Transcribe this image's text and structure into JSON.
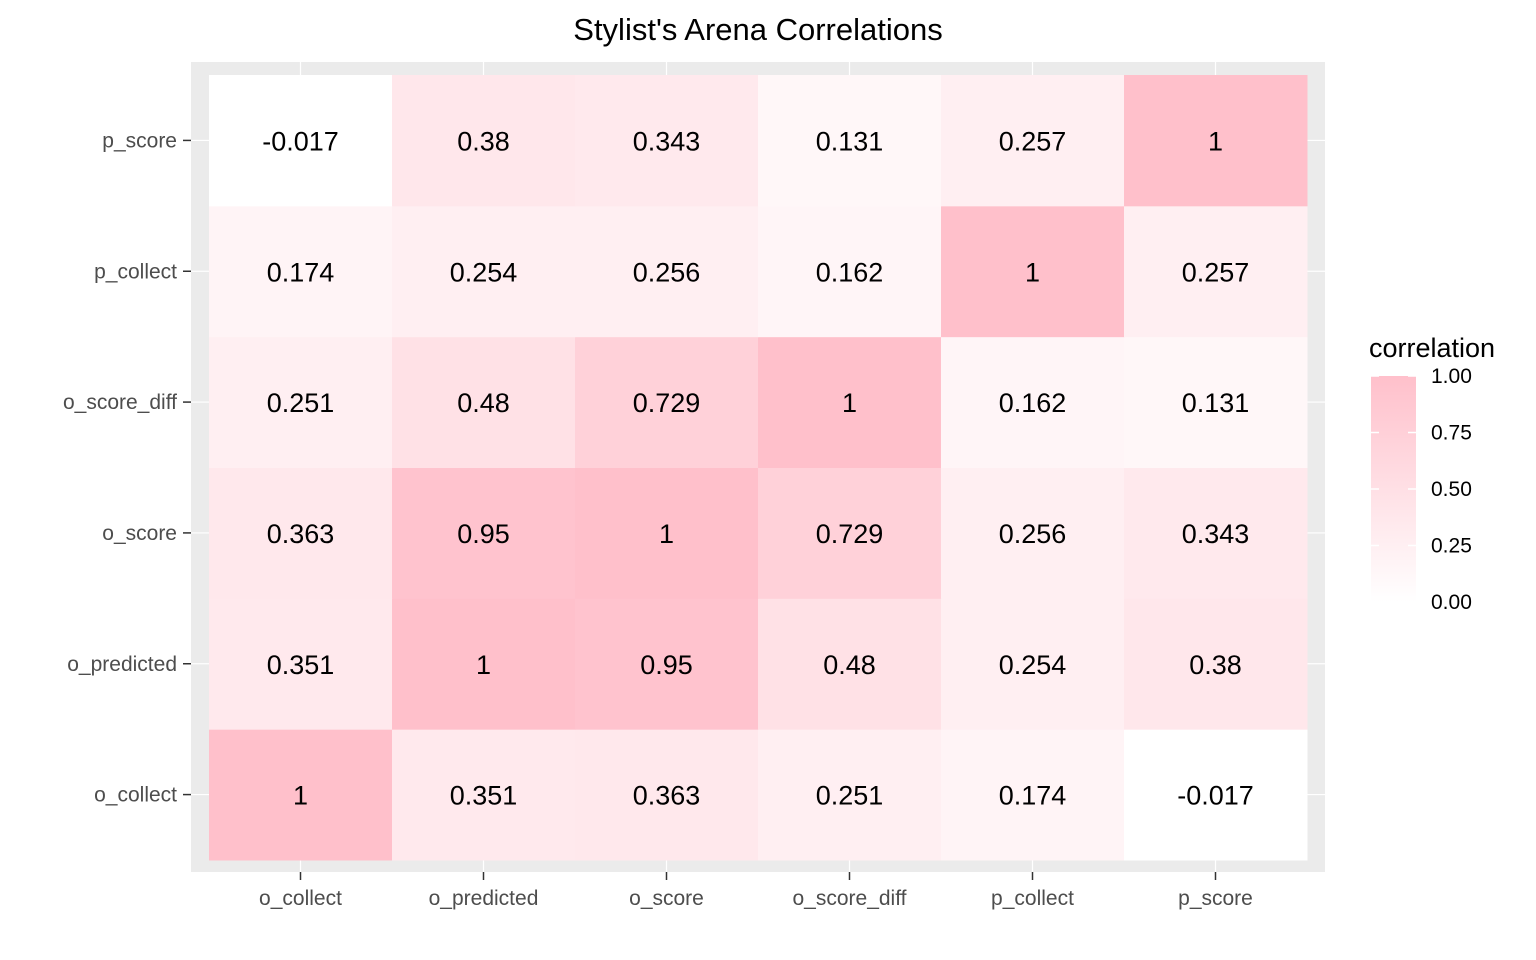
{
  "chart_data": {
    "type": "heatmap",
    "title": "Stylist's Arena Correlations",
    "xlabel": "",
    "ylabel": "",
    "x_categories": [
      "o_collect",
      "o_predicted",
      "o_score",
      "o_score_diff",
      "p_collect",
      "p_score"
    ],
    "y_categories": [
      "o_collect",
      "o_predicted",
      "o_score",
      "o_score_diff",
      "p_collect",
      "p_score"
    ],
    "matrix": [
      [
        1,
        0.351,
        0.363,
        0.251,
        0.174,
        -0.017
      ],
      [
        0.351,
        1,
        0.95,
        0.48,
        0.254,
        0.38
      ],
      [
        0.363,
        0.95,
        1,
        0.729,
        0.256,
        0.343
      ],
      [
        0.251,
        0.48,
        0.729,
        1,
        0.162,
        0.131
      ],
      [
        0.174,
        0.254,
        0.256,
        0.162,
        1,
        0.257
      ],
      [
        -0.017,
        0.38,
        0.343,
        0.131,
        0.257,
        1
      ]
    ],
    "color_scale": {
      "low": "#ffffff",
      "high": "#ffc0cb",
      "range": [
        0,
        1
      ]
    },
    "legend": {
      "title": "correlation",
      "ticks": [
        "0.00",
        "0.25",
        "0.50",
        "0.75",
        "1.00"
      ],
      "tick_values": [
        0,
        0.25,
        0.5,
        0.75,
        1
      ],
      "placement": "right"
    },
    "panel_background": "#ebebeb",
    "grid": true
  }
}
